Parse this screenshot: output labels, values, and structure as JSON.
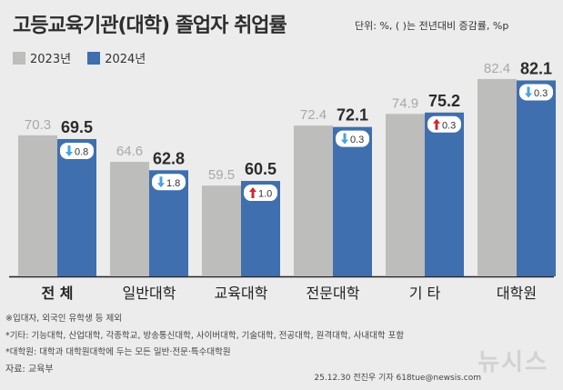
{
  "title": "고등교육기관(대학) 졸업자 취업률",
  "unit_note": "단위: %, ( )는 전년대비 증감률, %p",
  "legend": {
    "a": "2023년",
    "b": "2024년",
    "color_a": "#bdbdbb",
    "color_b": "#3f6fae"
  },
  "chart_data": {
    "type": "bar",
    "categories": [
      "전 체",
      "일반대학",
      "교육대학",
      "전문대학",
      "기 타",
      "대학원"
    ],
    "series": [
      {
        "name": "2023년",
        "values": [
          70.3,
          64.6,
          59.5,
          72.4,
          74.9,
          82.4
        ]
      },
      {
        "name": "2024년",
        "values": [
          69.5,
          62.8,
          60.5,
          72.1,
          75.2,
          82.1
        ]
      }
    ],
    "changes": [
      "0.8",
      "1.8",
      "1.0",
      "0.3",
      "0.3",
      "0.3"
    ],
    "change_direction": [
      "down",
      "down",
      "up",
      "down",
      "up",
      "down"
    ],
    "ylim": [
      40,
      90
    ],
    "bold_category_index": 0
  },
  "notes": {
    "n1": "※입대자, 외국인 유학생 등 제외",
    "n2": "*기타: 기능대학, 산업대학, 각종학교, 방송통신대학, 사이버대학, 기술대학, 전공대학, 원격대학, 사내대학 포함",
    "n3": "*대학원: 대학과 대학원대학에 두는 모든 일반·전문·특수대학원",
    "source": "자료: 교육부"
  },
  "credit": "25.12.30 전진우 기자 618tue@newsis.com",
  "watermark": "뉴시스"
}
